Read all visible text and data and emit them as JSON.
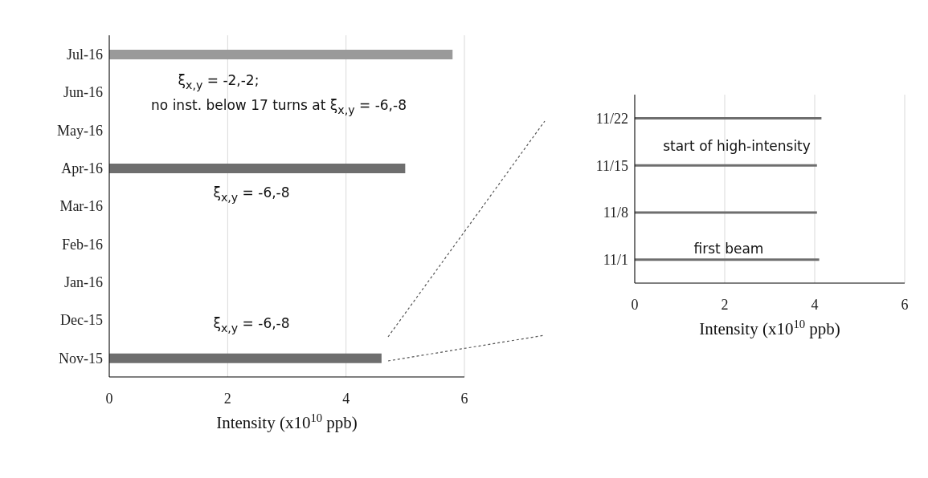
{
  "chart_data": [
    {
      "type": "bar",
      "orientation": "horizontal",
      "categories": [
        "Jul-16",
        "Jun-16",
        "May-16",
        "Apr-16",
        "Mar-16",
        "Feb-16",
        "Jan-16",
        "Dec-15",
        "Nov-15"
      ],
      "series": [
        {
          "color": "#6e6e6e",
          "values": [
            5.8,
            null,
            null,
            5.0,
            null,
            null,
            null,
            null,
            4.6
          ],
          "colors": [
            "#9a9a9a",
            "#6e6e6e",
            "#6e6e6e",
            "#6e6e6e",
            "#6e6e6e",
            "#6e6e6e",
            "#6e6e6e",
            "#6e6e6e",
            "#6e6e6e"
          ]
        }
      ],
      "xlabel": "Intensity (x10$^{10}$ ppb)",
      "xlim": [
        0,
        6
      ],
      "xticks": [
        0,
        2,
        4,
        6
      ],
      "grid": "x",
      "annotations": [
        "ξ$_{x,y}$ = -2,-2;",
        "no inst. below 17 turns at ξ$_{x,y}$ = -6,-8",
        "ξ$_{x,y}$ = -6,-8",
        "ξ$_{x,y}$ = -6,-8"
      ]
    },
    {
      "type": "bar",
      "orientation": "horizontal",
      "categories": [
        "11/22",
        "11/15",
        "11/8",
        "11/1"
      ],
      "series": [
        {
          "color": "#6e6e6e",
          "values": [
            4.15,
            4.05,
            4.05,
            4.1
          ]
        }
      ],
      "xlabel": "Intensity (x10$^{10}$ ppb)",
      "xlim": [
        0,
        6
      ],
      "xticks": [
        0,
        2,
        4,
        6
      ],
      "grid": "x",
      "annotations": [
        "start of high-intensity",
        "first beam"
      ]
    }
  ]
}
